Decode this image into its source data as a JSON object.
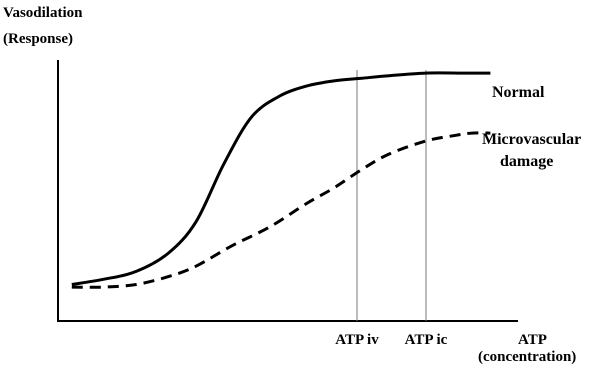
{
  "chart_data": {
    "type": "line",
    "title": "",
    "ylabel": [
      "Vasodilation",
      "(Response)"
    ],
    "xlabel": [
      "ATP",
      "(concentration)"
    ],
    "xlim": [
      0,
      100
    ],
    "ylim": [
      0,
      100
    ],
    "grid": false,
    "legend": "none",
    "x_markers": [
      {
        "label": "ATP iv",
        "x": 65
      },
      {
        "label": "ATP ic",
        "x": 80
      }
    ],
    "series": [
      {
        "name": "Normal",
        "style": "solid",
        "color": "#000000",
        "points": [
          [
            3,
            14
          ],
          [
            10,
            16
          ],
          [
            17,
            19
          ],
          [
            24,
            26
          ],
          [
            30,
            38
          ],
          [
            36,
            60
          ],
          [
            42,
            78
          ],
          [
            48,
            86
          ],
          [
            54,
            90
          ],
          [
            60,
            92
          ],
          [
            66,
            93
          ],
          [
            72,
            94
          ],
          [
            80,
            95
          ],
          [
            88,
            95
          ],
          [
            94,
            95
          ]
        ]
      },
      {
        "name_lines": [
          "Microvascular",
          "damage"
        ],
        "style": "dashed",
        "color": "#000000",
        "points": [
          [
            3,
            13
          ],
          [
            10,
            13
          ],
          [
            17,
            14
          ],
          [
            24,
            17
          ],
          [
            30,
            21
          ],
          [
            38,
            29
          ],
          [
            46,
            36
          ],
          [
            54,
            45
          ],
          [
            60,
            51
          ],
          [
            66,
            58
          ],
          [
            72,
            64
          ],
          [
            80,
            69
          ],
          [
            86,
            71
          ],
          [
            90,
            72
          ],
          [
            94,
            72
          ]
        ]
      }
    ]
  }
}
